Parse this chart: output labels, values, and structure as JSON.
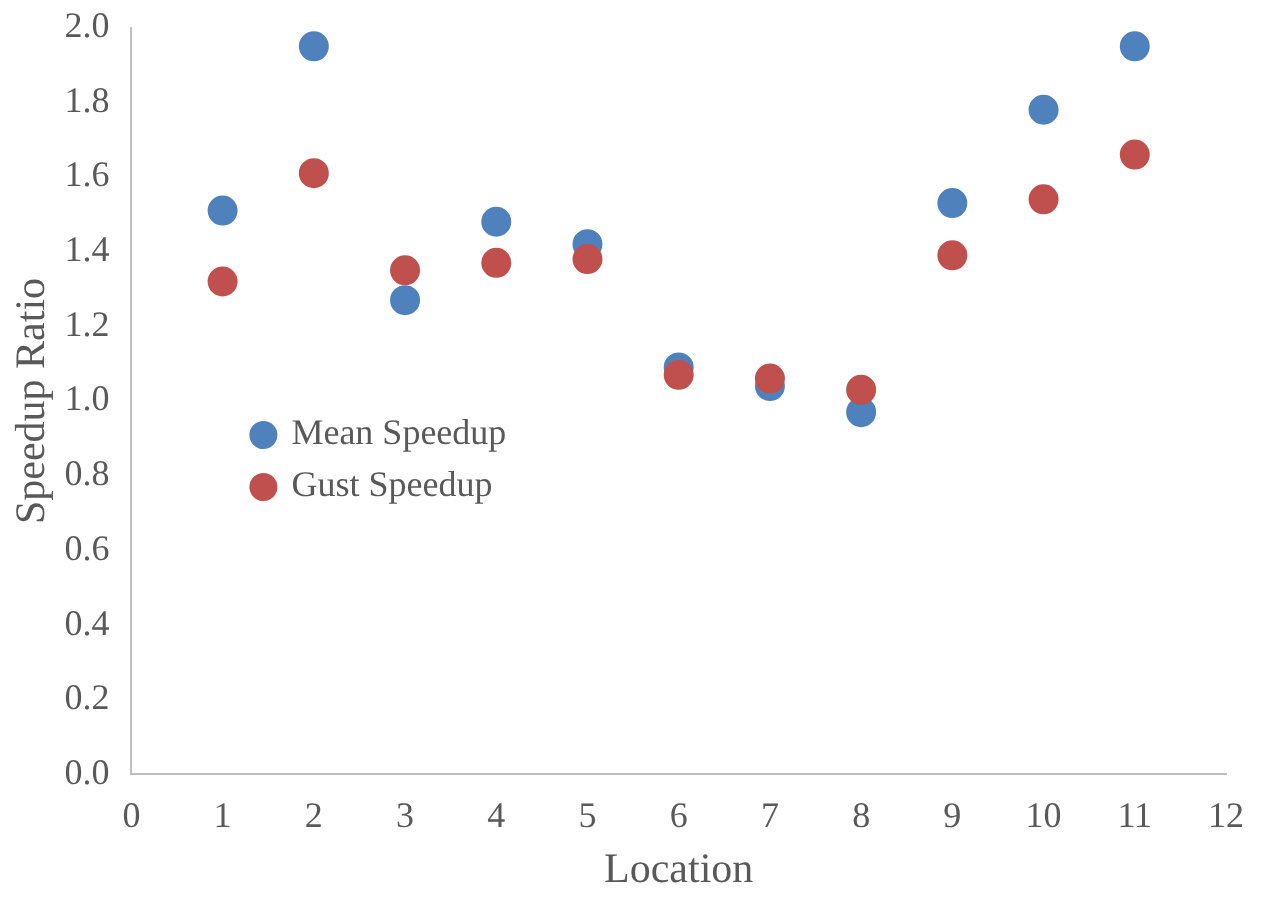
{
  "chart_data": {
    "type": "scatter",
    "xlabel": "Location",
    "ylabel": "Speedup Ratio",
    "xlim": [
      0,
      12
    ],
    "xticks": [
      0,
      1,
      2,
      3,
      4,
      5,
      6,
      7,
      8,
      9,
      10,
      11,
      12
    ],
    "ylim": [
      0,
      2
    ],
    "yticks": [
      {
        "value": 0,
        "label": "0.0"
      },
      {
        "value": 0.2,
        "label": "0.2"
      },
      {
        "value": 0.4,
        "label": "0.4"
      },
      {
        "value": 0.6,
        "label": "0.6"
      },
      {
        "value": 0.8,
        "label": "0.8"
      },
      {
        "value": 1,
        "label": "1.0"
      },
      {
        "value": 1.2,
        "label": "1.2"
      },
      {
        "value": 1.4,
        "label": "1.4"
      },
      {
        "value": 1.6,
        "label": "1.6"
      },
      {
        "value": 1.8,
        "label": "1.8"
      },
      {
        "value": 2,
        "label": "2.0"
      }
    ],
    "x": [
      1,
      2,
      3,
      4,
      5,
      6,
      7,
      8,
      9,
      10,
      11
    ],
    "grid": false,
    "legend": "left",
    "marker": "circle",
    "series": [
      {
        "name": "Mean Speedup",
        "color": "#4f81bd",
        "values": [
          1.51,
          1.95,
          1.27,
          1.48,
          1.42,
          1.09,
          1.04,
          0.97,
          1.53,
          1.78,
          1.95
        ]
      },
      {
        "name": "Gust Speedup",
        "color": "#c0504d",
        "values": [
          1.32,
          1.61,
          1.35,
          1.37,
          1.38,
          1.07,
          1.06,
          1.03,
          1.39,
          1.54,
          1.66
        ]
      }
    ]
  }
}
